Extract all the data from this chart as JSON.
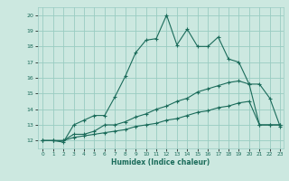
{
  "xlabel": "Humidex (Indice chaleur)",
  "xlim": [
    -0.5,
    23.3
  ],
  "ylim": [
    11.5,
    20.5
  ],
  "bg_color": "#cce8e0",
  "grid_color": "#99ccc2",
  "line_color": "#1a6b5a",
  "x_ticks": [
    0,
    1,
    2,
    3,
    4,
    5,
    6,
    7,
    8,
    9,
    10,
    11,
    12,
    13,
    14,
    15,
    16,
    17,
    18,
    19,
    20,
    21,
    22,
    23
  ],
  "y_ticks": [
    12,
    13,
    14,
    15,
    16,
    17,
    18,
    19,
    20
  ],
  "line1_x": [
    0,
    1,
    2,
    3,
    4,
    5,
    6,
    7,
    8,
    9,
    10,
    11,
    12,
    13,
    14,
    15,
    16,
    17,
    18,
    19,
    20,
    21,
    22,
    23
  ],
  "line1_y": [
    12.0,
    12.0,
    11.9,
    13.0,
    13.3,
    13.6,
    13.6,
    14.8,
    16.1,
    17.6,
    18.4,
    18.5,
    20.0,
    18.1,
    19.1,
    18.0,
    18.0,
    18.6,
    17.2,
    17.0,
    15.6,
    15.6,
    14.7,
    12.9
  ],
  "line2_x": [
    0,
    1,
    2,
    3,
    4,
    5,
    6,
    7,
    8,
    9,
    10,
    11,
    12,
    13,
    14,
    15,
    16,
    17,
    18,
    19,
    20,
    21,
    22,
    23
  ],
  "line2_y": [
    12.0,
    12.0,
    12.0,
    12.4,
    12.4,
    12.6,
    13.0,
    13.0,
    13.2,
    13.5,
    13.7,
    14.0,
    14.2,
    14.5,
    14.7,
    15.1,
    15.3,
    15.5,
    15.7,
    15.8,
    15.6,
    13.0,
    13.0,
    13.0
  ],
  "line3_x": [
    0,
    1,
    2,
    3,
    4,
    5,
    6,
    7,
    8,
    9,
    10,
    11,
    12,
    13,
    14,
    15,
    16,
    17,
    18,
    19,
    20,
    21,
    22,
    23
  ],
  "line3_y": [
    12.0,
    12.0,
    12.0,
    12.2,
    12.3,
    12.4,
    12.5,
    12.6,
    12.7,
    12.9,
    13.0,
    13.1,
    13.3,
    13.4,
    13.6,
    13.8,
    13.9,
    14.1,
    14.2,
    14.4,
    14.5,
    13.0,
    13.0,
    13.0
  ]
}
